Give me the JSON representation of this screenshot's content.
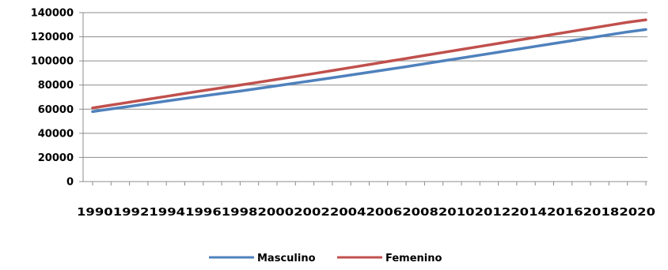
{
  "chart_data": {
    "type": "line",
    "title": "",
    "xlabel": "",
    "ylabel": "",
    "x": [
      1990,
      1991,
      1992,
      1993,
      1994,
      1995,
      1996,
      1997,
      1998,
      1999,
      2000,
      2001,
      2002,
      2003,
      2004,
      2005,
      2006,
      2007,
      2008,
      2009,
      2010,
      2011,
      2012,
      2013,
      2014,
      2015,
      2016,
      2017,
      2018,
      2019,
      2020
    ],
    "x_tick_labels": [
      "1990",
      "1992",
      "1994",
      "1996",
      "1998",
      "2000",
      "2002",
      "2004",
      "2006",
      "2008",
      "2010",
      "2012",
      "2014",
      "2016",
      "2018",
      "2020"
    ],
    "ylim": [
      0,
      140000
    ],
    "y_ticks": [
      "0",
      "20000",
      "40000",
      "60000",
      "80000",
      "100000",
      "120000",
      "140000"
    ],
    "grid": "horizontal",
    "legend_position": "bottom",
    "series": [
      {
        "name": "Masculino",
        "color": "#4f81bd",
        "values": [
          58000,
          60200,
          62300,
          64500,
          66700,
          68900,
          71000,
          73000,
          75000,
          77200,
          79400,
          81600,
          83800,
          86000,
          88300,
          90600,
          92900,
          95200,
          97600,
          100000,
          102400,
          104800,
          107200,
          109600,
          112000,
          114400,
          116800,
          119200,
          121600,
          124000,
          126000
        ]
      },
      {
        "name": "Femenino",
        "color": "#c0504d",
        "values": [
          61000,
          63400,
          65800,
          68200,
          70600,
          73000,
          75400,
          77700,
          80000,
          82300,
          84700,
          87100,
          89500,
          92000,
          94500,
          97000,
          99500,
          102000,
          104500,
          107000,
          109500,
          112000,
          114500,
          117000,
          119500,
          122000,
          124500,
          127000,
          129500,
          132000,
          134000
        ]
      }
    ]
  }
}
